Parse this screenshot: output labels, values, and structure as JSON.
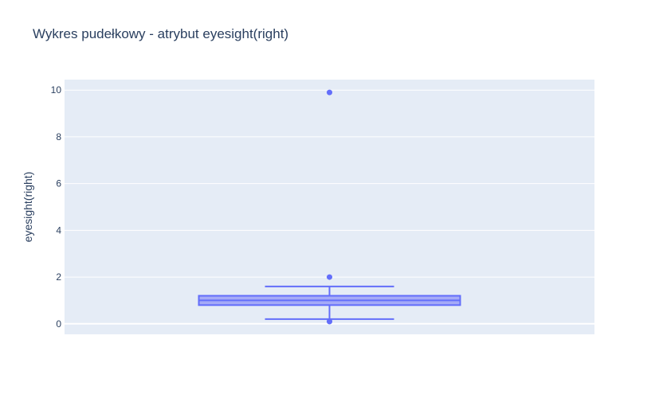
{
  "colors": {
    "plot_background": "#e5ecf6",
    "grid": "#ffffff",
    "box_line": "#636efa",
    "box_fill": "#a5aaf7",
    "text": "#2a3f5f"
  },
  "chart_data": {
    "type": "box",
    "title": "Wykres pudełkowy - atrybut eyesight(right)",
    "xlabel": "",
    "ylabel": "eyesight(right)",
    "ylim": [
      -0.45,
      10.45
    ],
    "yticks": [
      0,
      2,
      4,
      6,
      8,
      10
    ],
    "grid": true,
    "legend": "none",
    "series": [
      {
        "whisker_low": 0.2,
        "q1": 0.8,
        "median": 1.0,
        "q3": 1.2,
        "whisker_high": 1.6,
        "outliers": [
          0.1,
          0.1,
          2.0,
          9.9
        ]
      }
    ]
  }
}
